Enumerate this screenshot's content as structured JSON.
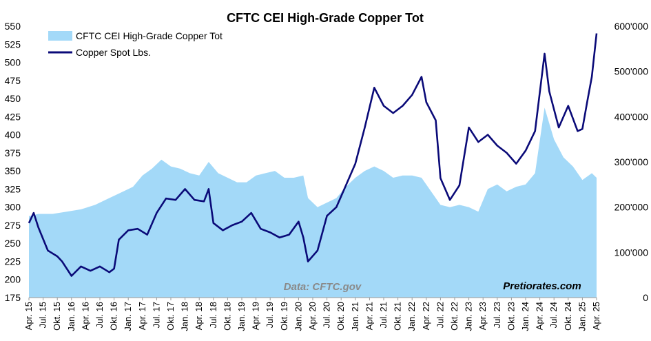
{
  "chart_data": {
    "type": "area+line",
    "title": "CFTC CEI High-Grade Copper Tot",
    "legend": {
      "placement": "top-left",
      "items": [
        {
          "name": "CFTC CEI High-Grade Copper Tot",
          "style": "area",
          "color": "#a3d9f8"
        },
        {
          "name": "Copper Spot Lbs.",
          "style": "line",
          "color": "#0a0a78"
        }
      ]
    },
    "left_axis": {
      "ylim": [
        175,
        550
      ],
      "ticks": [
        "175",
        "200",
        "225",
        "250",
        "275",
        "300",
        "325",
        "350",
        "375",
        "400",
        "425",
        "450",
        "475",
        "500",
        "525",
        "550"
      ],
      "series": "Copper Spot Lbs."
    },
    "right_axis": {
      "ylim": [
        0,
        600000
      ],
      "ticks": [
        "0",
        "100'000",
        "200'000",
        "300'000",
        "400'000",
        "500'000",
        "600'000"
      ],
      "series": "CFTC CEI High-Grade Copper Tot"
    },
    "x_axis": {
      "range": [
        "2015-04",
        "2025-04"
      ],
      "ticks": [
        "Apr. 15",
        "Jul. 15",
        "Okt. 15",
        "Jan. 16",
        "Apr. 16",
        "Jul. 16",
        "Okt. 16",
        "Jan. 17",
        "Apr. 17",
        "Jul. 17",
        "Okt. 17",
        "Jan. 18",
        "Apr. 18",
        "Jul. 18",
        "Okt. 18",
        "Jan. 19",
        "Apr. 19",
        "Jul. 19",
        "Okt. 19",
        "Jan. 20",
        "Apr. 20",
        "Jul. 20",
        "Okt. 20",
        "Jan. 21",
        "Apr. 21",
        "Jul. 21",
        "Okt. 21",
        "Jan. 22",
        "Apr. 22",
        "Jul. 22",
        "Okt. 22",
        "Jan. 23",
        "Apr. 23",
        "Jul. 23",
        "Okt. 23",
        "Jan. 24",
        "Apr. 24",
        "Jul. 24",
        "Okt. 24",
        "Jan. 25",
        "Apr. 25"
      ]
    },
    "grid": false,
    "series": [
      {
        "name": "CFTC CEI High-Grade Copper Tot",
        "axis": "right",
        "color": "#a3d9f8",
        "x": [
          "2015-04",
          "2015-06",
          "2015-09",
          "2015-12",
          "2016-03",
          "2016-06",
          "2016-09",
          "2016-12",
          "2017-02",
          "2017-04",
          "2017-06",
          "2017-08",
          "2017-10",
          "2017-12",
          "2018-02",
          "2018-04",
          "2018-06",
          "2018-08",
          "2018-10",
          "2018-12",
          "2019-02",
          "2019-04",
          "2019-06",
          "2019-08",
          "2019-10",
          "2019-12",
          "2020-02",
          "2020-03",
          "2020-05",
          "2020-07",
          "2020-09",
          "2020-11",
          "2021-01",
          "2021-03",
          "2021-05",
          "2021-07",
          "2021-09",
          "2021-11",
          "2022-01",
          "2022-03",
          "2022-05",
          "2022-07",
          "2022-09",
          "2022-11",
          "2023-01",
          "2023-03",
          "2023-05",
          "2023-07",
          "2023-09",
          "2023-11",
          "2024-01",
          "2024-03",
          "2024-05",
          "2024-07",
          "2024-09",
          "2024-11",
          "2025-01",
          "2025-03",
          "2025-04"
        ],
        "values": [
          180000,
          185000,
          185000,
          190000,
          195000,
          205000,
          220000,
          235000,
          245000,
          270000,
          285000,
          305000,
          290000,
          285000,
          275000,
          270000,
          300000,
          275000,
          265000,
          255000,
          255000,
          270000,
          275000,
          280000,
          265000,
          265000,
          270000,
          220000,
          200000,
          210000,
          220000,
          245000,
          265000,
          280000,
          290000,
          280000,
          265000,
          270000,
          270000,
          265000,
          235000,
          205000,
          200000,
          205000,
          200000,
          190000,
          240000,
          250000,
          235000,
          245000,
          250000,
          275000,
          420000,
          350000,
          310000,
          290000,
          260000,
          275000,
          265000
        ]
      },
      {
        "name": "Copper Spot Lbs.",
        "axis": "left",
        "color": "#0a0a78",
        "x": [
          "2015-04",
          "2015-05",
          "2015-06",
          "2015-08",
          "2015-10",
          "2015-11",
          "2016-01",
          "2016-03",
          "2016-05",
          "2016-07",
          "2016-09",
          "2016-10",
          "2016-11",
          "2017-01",
          "2017-03",
          "2017-05",
          "2017-07",
          "2017-09",
          "2017-11",
          "2018-01",
          "2018-03",
          "2018-05",
          "2018-06",
          "2018-07",
          "2018-09",
          "2018-11",
          "2019-01",
          "2019-03",
          "2019-05",
          "2019-07",
          "2019-09",
          "2019-11",
          "2020-01",
          "2020-02",
          "2020-03",
          "2020-05",
          "2020-07",
          "2020-09",
          "2020-11",
          "2021-01",
          "2021-03",
          "2021-05",
          "2021-07",
          "2021-09",
          "2021-11",
          "2022-01",
          "2022-03",
          "2022-04",
          "2022-06",
          "2022-07",
          "2022-09",
          "2022-11",
          "2023-01",
          "2023-03",
          "2023-05",
          "2023-07",
          "2023-09",
          "2023-11",
          "2024-01",
          "2024-03",
          "2024-05",
          "2024-06",
          "2024-08",
          "2024-10",
          "2024-12",
          "2025-01",
          "2025-02",
          "2025-03",
          "2025-04"
        ],
        "values": [
          278,
          292,
          272,
          240,
          232,
          225,
          205,
          218,
          212,
          218,
          210,
          215,
          255,
          268,
          270,
          262,
          292,
          312,
          310,
          325,
          310,
          308,
          325,
          278,
          268,
          275,
          280,
          292,
          270,
          265,
          258,
          262,
          280,
          258,
          225,
          240,
          288,
          300,
          330,
          360,
          410,
          465,
          440,
          430,
          440,
          455,
          480,
          445,
          420,
          340,
          310,
          330,
          410,
          390,
          400,
          385,
          375,
          360,
          378,
          405,
          512,
          460,
          410,
          440,
          405,
          408,
          445,
          480,
          540
        ]
      }
    ],
    "annotations": [
      {
        "text": "Data: CFTC.gov",
        "placement": "bottom-center"
      },
      {
        "text": "Pretiorates.com",
        "placement": "bottom-right"
      }
    ]
  }
}
